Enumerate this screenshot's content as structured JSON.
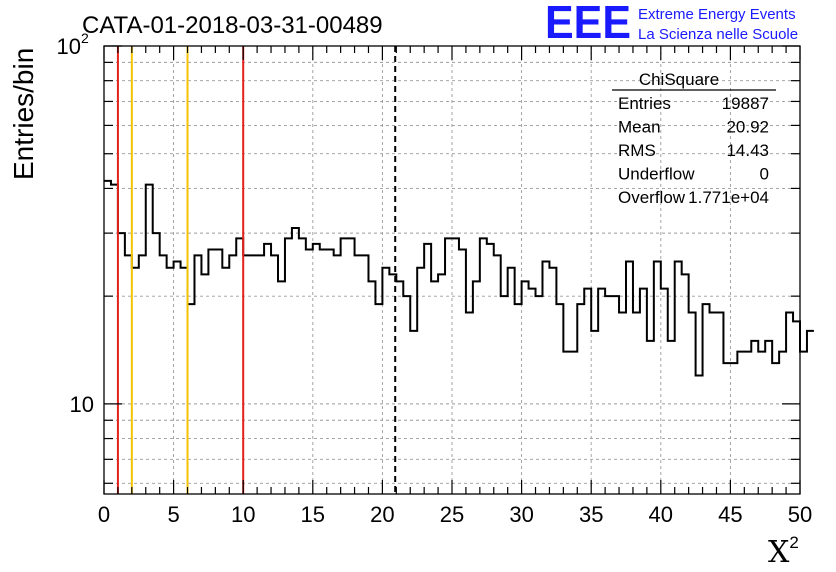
{
  "header": {
    "run_title": "CATA-01-2018-03-31-00489",
    "logo_text": "EEE",
    "project_line1": "Extreme Energy Events",
    "project_line2": "La Scienza nelle Scuole"
  },
  "stats_box": {
    "title": "ChiSquare",
    "rows": [
      {
        "label": "Entries",
        "value": "19887"
      },
      {
        "label": "Mean",
        "value": "20.92"
      },
      {
        "label": "RMS",
        "value": "14.43"
      },
      {
        "label": "Underflow",
        "value": "0"
      },
      {
        "label": "Overflow",
        "value": "1.771e+04"
      }
    ]
  },
  "chart_data": {
    "type": "histogram",
    "title": "CATA-01-2018-03-31-00489",
    "xlabel": "X",
    "xlabel_superscript": "2",
    "ylabel": "Entries/bin",
    "xlim": [
      0,
      50
    ],
    "ylim": [
      5.6,
      100
    ],
    "yscale": "log",
    "grid": true,
    "x_ticks": [
      "0",
      "5",
      "10",
      "15",
      "20",
      "25",
      "30",
      "35",
      "40",
      "45",
      "50"
    ],
    "y_ticks": [
      {
        "value": 10,
        "label": "10"
      },
      {
        "value": 100,
        "label": "10",
        "exponent": "2"
      }
    ],
    "bin_width": 0.5,
    "bin_values": [
      42,
      41,
      30,
      26,
      24,
      26,
      41,
      30,
      26,
      24,
      25,
      24,
      19,
      26,
      23,
      27,
      27,
      24,
      26,
      29,
      26,
      26,
      26,
      28,
      26,
      22,
      29,
      31,
      29,
      27,
      28,
      27,
      27,
      26,
      29,
      29,
      26,
      26,
      22,
      19,
      24,
      23,
      22,
      20,
      16,
      24,
      28,
      22,
      23,
      29,
      29,
      27,
      18,
      22,
      29,
      28,
      26,
      20,
      24,
      19,
      22,
      21,
      20,
      25,
      24,
      19,
      14,
      14,
      19,
      21,
      16,
      21,
      20,
      20,
      18,
      25,
      18,
      21,
      15,
      25,
      21,
      15,
      25,
      23,
      18,
      12,
      19,
      18,
      18,
      13,
      13,
      14,
      14,
      15,
      14,
      15,
      13,
      14,
      18,
      17,
      14,
      16
    ],
    "vertical_lines": [
      {
        "x": 1,
        "color": "#e3221b",
        "style": "solid"
      },
      {
        "x": 2,
        "color": "#f5c400",
        "style": "solid"
      },
      {
        "x": 6,
        "color": "#f5c400",
        "style": "solid"
      },
      {
        "x": 10,
        "color": "#e3221b",
        "style": "solid"
      },
      {
        "x": 20.92,
        "color": "#000000",
        "style": "dashed"
      }
    ]
  },
  "colors": {
    "logo_blue": "#1a1aff",
    "histogram_line": "#000000",
    "grid": "#9a9a9a"
  }
}
